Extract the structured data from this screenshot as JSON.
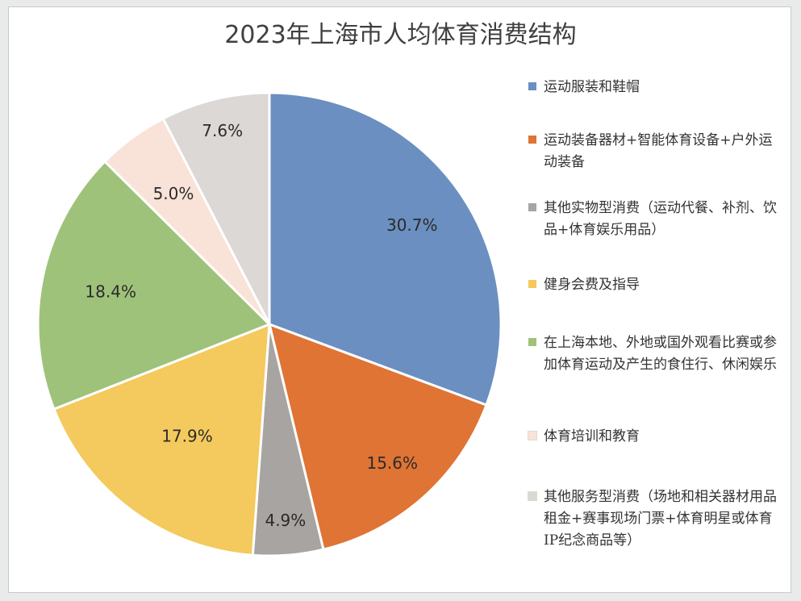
{
  "chart_data": {
    "type": "pie",
    "title": "2023年上海市人均体育消费结构",
    "legend_position": "right",
    "slices": [
      {
        "label": "运动服装和鞋帽",
        "value": 30.7,
        "display": "30.7%",
        "color": "#6b8fc0"
      },
      {
        "label": "运动装备器材+智能体育设备+户外运动装备",
        "value": 15.6,
        "display": "15.6%",
        "color": "#df7434"
      },
      {
        "label": "其他实物型消费（运动代餐、补剂、饮品+体育娱乐用品）",
        "value": 4.9,
        "display": "4.9%",
        "color": "#a7a4a1"
      },
      {
        "label": "健身会费及指导",
        "value": 17.9,
        "display": "17.9%",
        "color": "#f4c95d"
      },
      {
        "label": "在上海本地、外地或国外观看比赛或参加体育运动及产生的食住行、休闲娱乐",
        "value": 18.4,
        "display": "18.4%",
        "color": "#9fc27a"
      },
      {
        "label": "体育培训和教育",
        "value": 5.0,
        "display": "5.0%",
        "color": "#f9e2d8"
      },
      {
        "label": "其他服务型消费（场地和相关器材用品租金+赛事现场门票+体育明星或体育IP纪念商品等）",
        "value": 7.6,
        "display": "7.6%",
        "color": "#dbd8d5"
      }
    ]
  }
}
